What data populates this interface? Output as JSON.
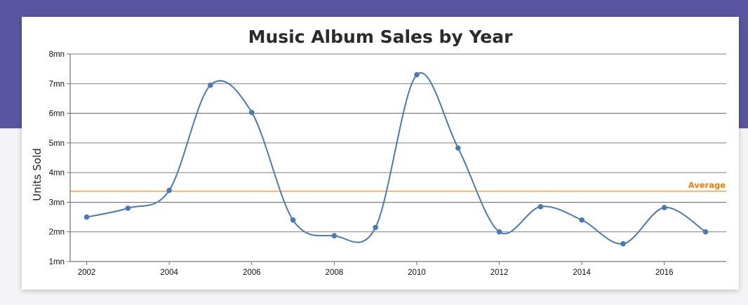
{
  "chart_data": {
    "type": "line",
    "title": "Music Album Sales by Year",
    "xlabel": "",
    "ylabel": "Units Sold",
    "x_ticks": [
      "2002",
      "2004",
      "2006",
      "2008",
      "2010",
      "2012",
      "2014",
      "2016"
    ],
    "y_ticks": [
      "1mn",
      "2mn",
      "3mn",
      "4mn",
      "5mn",
      "6mn",
      "7mn",
      "8mn"
    ],
    "xlim": [
      2001.6,
      2017.5
    ],
    "ylim": [
      1,
      8
    ],
    "grid": true,
    "series": [
      {
        "color": "#4a7ab5",
        "points": [
          {
            "x": 2002,
            "y": 2.5
          },
          {
            "x": 2003,
            "y": 2.8
          },
          {
            "x": 2004,
            "y": 3.4
          },
          {
            "x": 2005,
            "y": 6.95
          },
          {
            "x": 2006,
            "y": 6.03
          },
          {
            "x": 2007,
            "y": 2.4
          },
          {
            "x": 2008,
            "y": 1.87
          },
          {
            "x": 2009,
            "y": 2.15
          },
          {
            "x": 2010,
            "y": 7.3
          },
          {
            "x": 2011,
            "y": 4.83
          },
          {
            "x": 2012,
            "y": 2.0
          },
          {
            "x": 2013,
            "y": 2.85
          },
          {
            "x": 2014,
            "y": 2.4
          },
          {
            "x": 2015,
            "y": 1.6
          },
          {
            "x": 2016,
            "y": 2.82
          },
          {
            "x": 2017,
            "y": 2.0
          }
        ]
      }
    ],
    "strip_lines": [
      {
        "label": "Average",
        "value": 3.37,
        "color": "#f07e13"
      }
    ],
    "colors": {
      "band": "#5a55a0",
      "line": "#4a7ab5",
      "average": "#f07e13",
      "grid": "#555555"
    }
  }
}
